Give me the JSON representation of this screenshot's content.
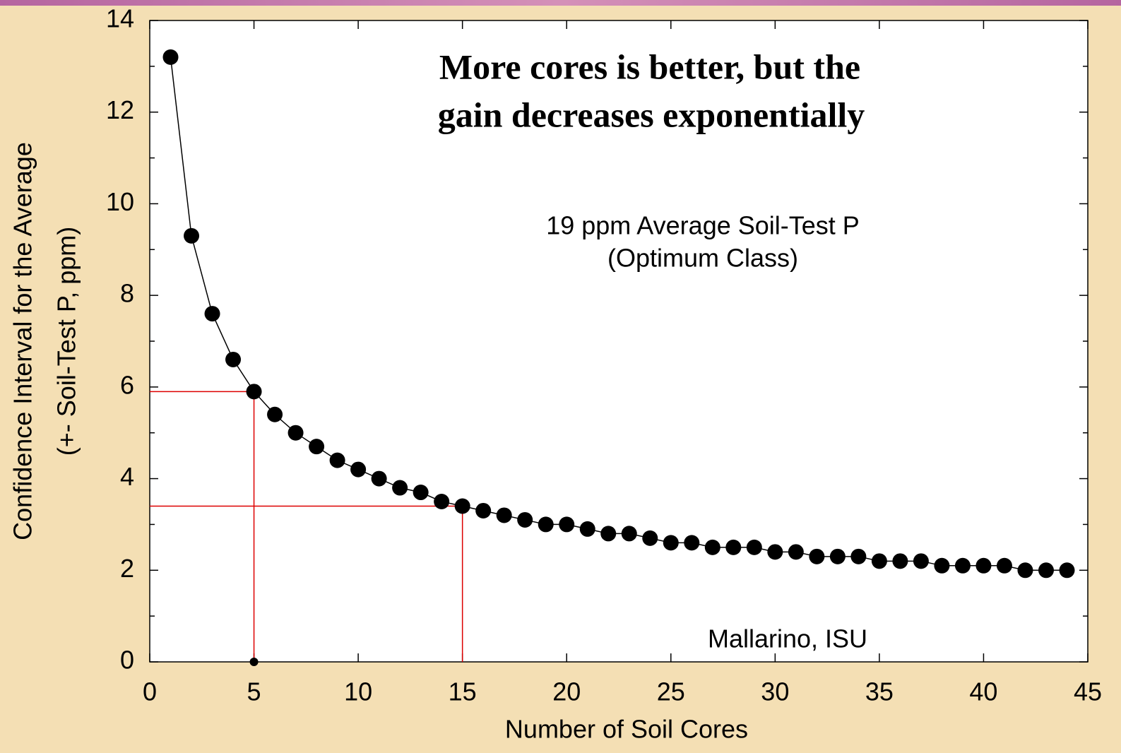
{
  "chart_data": {
    "type": "scatter",
    "annotations": [
      "More cores is better, but the",
      "gain decreases exponentially",
      "19 ppm Average Soil-Test P",
      "(Optimum Class)",
      "Mallarino, ISU"
    ],
    "xlabel": "Number of Soil Cores",
    "ylabel": [
      "Confidence Interval for the Average",
      "(+- Soil-Test P, ppm)"
    ],
    "x": [
      1,
      2,
      3,
      4,
      5,
      6,
      7,
      8,
      9,
      10,
      11,
      12,
      13,
      14,
      15,
      16,
      17,
      18,
      19,
      20,
      21,
      22,
      23,
      24,
      25,
      26,
      27,
      28,
      29,
      30,
      31,
      32,
      33,
      34,
      35,
      36,
      37,
      38,
      39,
      40,
      41,
      42,
      43,
      44
    ],
    "series": [
      {
        "color": "#000000",
        "values": [
          13.2,
          9.3,
          7.6,
          6.6,
          5.9,
          5.4,
          5.0,
          4.7,
          4.4,
          4.2,
          4.0,
          3.8,
          3.7,
          3.5,
          3.4,
          3.3,
          3.2,
          3.1,
          3.0,
          3.0,
          2.9,
          2.8,
          2.8,
          2.7,
          2.6,
          2.6,
          2.5,
          2.5,
          2.5,
          2.4,
          2.4,
          2.3,
          2.3,
          2.3,
          2.2,
          2.2,
          2.2,
          2.1,
          2.1,
          2.1,
          2.1,
          2.0,
          2.0,
          2.0
        ]
      }
    ],
    "reference_lines": [
      {
        "x": 5,
        "y": 5.9,
        "color": "#dd0000"
      },
      {
        "x": 15,
        "y": 3.4,
        "color": "#dd0000"
      }
    ],
    "highlight_point": {
      "x": 5,
      "y": 0
    },
    "xlim": [
      0,
      45
    ],
    "xticks": [
      0,
      5,
      10,
      15,
      20,
      25,
      30,
      35,
      40,
      45
    ],
    "ylim": [
      0,
      14
    ],
    "yticks": [
      0,
      2,
      4,
      6,
      8,
      10,
      12,
      14
    ],
    "yminor_ticks": [
      1,
      3,
      5,
      7,
      9,
      11,
      13
    ]
  }
}
